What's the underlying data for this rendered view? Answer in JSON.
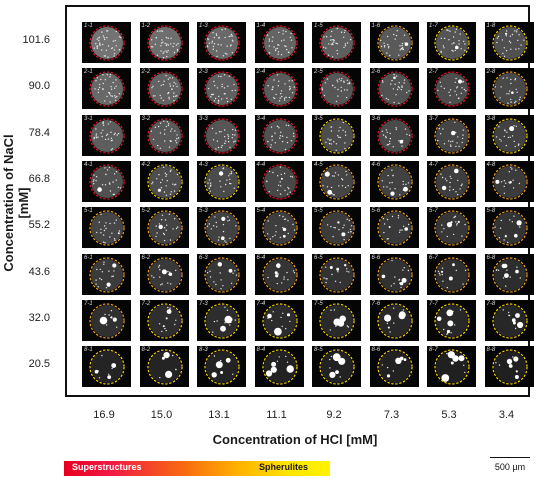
{
  "figure": {
    "y_axis": {
      "title": "Concentration of NaCl [mM]",
      "ticks": [
        "101.6",
        "90.0",
        "78.4",
        "66.8",
        "55.2",
        "43.6",
        "32.0",
        "20.5"
      ]
    },
    "x_axis": {
      "title": "Concentration of HCl [mM]",
      "ticks": [
        "16.9",
        "15.0",
        "13.1",
        "11.1",
        "9.2",
        "7.3",
        "5.3",
        "3.4"
      ]
    },
    "legend": {
      "left_label": "Superstructures",
      "right_label": "Spherulites",
      "left_color": "#e8001f",
      "right_color": "#fff200"
    },
    "scale_bar": {
      "label": "500 µm"
    },
    "grid": {
      "rows": 8,
      "cols": 8,
      "cell_labels": [
        [
          "1-1",
          "1-2",
          "1-3",
          "1-4",
          "1-5",
          "1-6",
          "1-7",
          "1-8"
        ],
        [
          "2-1",
          "2-2",
          "2-3",
          "2-4",
          "2-5",
          "2-6",
          "2-7",
          "2-8"
        ],
        [
          "3-1",
          "3-2",
          "3-3",
          "3-4",
          "3-5",
          "3-6",
          "3-7",
          "3-8"
        ],
        [
          "4-1",
          "4-2",
          "4-3",
          "4-4",
          "4-5",
          "4-6",
          "4-7",
          "4-8"
        ],
        [
          "5-1",
          "5-2",
          "5-3",
          "5-4",
          "5-5",
          "5-6",
          "5-7",
          "5-8"
        ],
        [
          "6-1",
          "6-2",
          "6-3",
          "6-4",
          "6-5",
          "6-6",
          "6-7",
          "6-8"
        ],
        [
          "7-1",
          "7-2",
          "7-3",
          "7-4",
          "7-5",
          "7-6",
          "7-7",
          "7-8"
        ],
        [
          "8-1",
          "8-2",
          "8-3",
          "8-4",
          "8-5",
          "8-6",
          "8-7",
          "8-8"
        ]
      ],
      "circle_colors": [
        [
          "#e8132b",
          "#e8132b",
          "#e8132b",
          "#e8132b",
          "#e8132b",
          "#f0a020",
          "#f5d000",
          "#f5d000"
        ],
        [
          "#e8132b",
          "#e8132b",
          "#e8132b",
          "#e8132b",
          "#e8132b",
          "#e8132b",
          "#e8132b",
          "#f0a020"
        ],
        [
          "#e8132b",
          "#e8132b",
          "#e8132b",
          "#e8132b",
          "#f5d000",
          "#e8132b",
          "#f0a020",
          "#f5d000"
        ],
        [
          "#e8132b",
          "#f5d000",
          "#f5d000",
          "#e8132b",
          "#f0a020",
          "#f0a020",
          "#f0a020",
          "#f0a020"
        ],
        [
          "#f0a020",
          "#f0a020",
          "#f0a020",
          "#f0a020",
          "#f0a020",
          "#f0a020",
          "#f0a020",
          "#f0a020"
        ],
        [
          "#f0a020",
          "#f0a020",
          "#f0a020",
          "#f0a020",
          "#f0a020",
          "#f0a020",
          "#f0a020",
          "#f0a020"
        ],
        [
          "#f0a020",
          "#f5d000",
          "#f5d000",
          "#f5d000",
          "#f5d000",
          "#f5d000",
          "#f5d000",
          "#f5d000"
        ],
        [
          "#f5d000",
          "#f5d000",
          "#f5d000",
          "#f5d000",
          "#f5d000",
          "#f5d000",
          "#f5d000",
          "#f5d000"
        ]
      ]
    }
  }
}
